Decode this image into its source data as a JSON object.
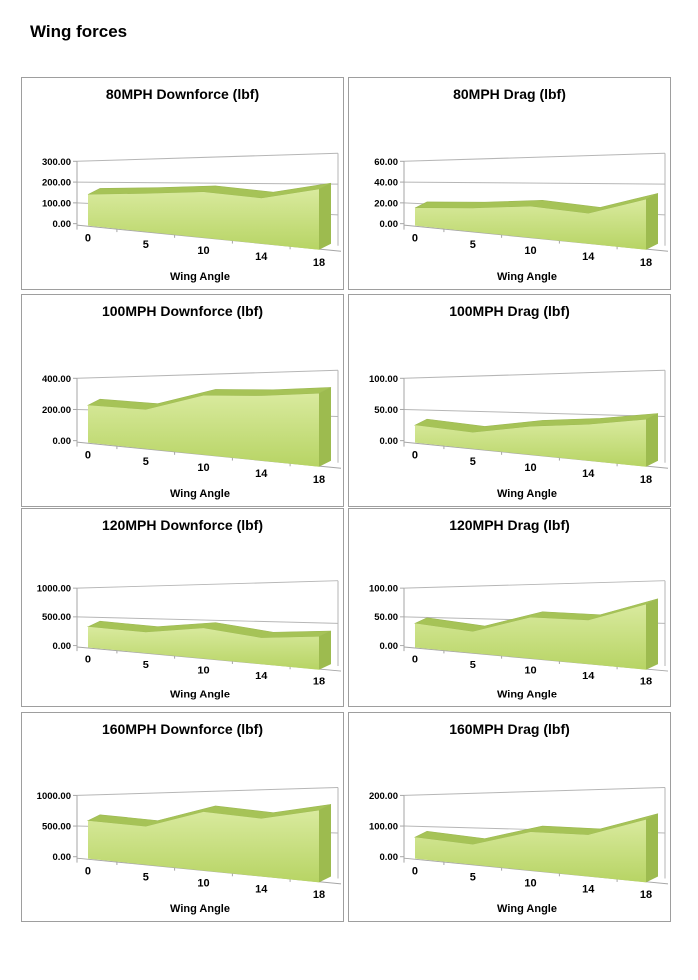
{
  "page": {
    "title": "Wing forces"
  },
  "colors": {
    "area_top": "#d9ea9e",
    "area_bottom": "#b7d464",
    "ribbon": "#a6c357",
    "ribbon_edge": "#9cb852",
    "side_face": "#9dbb4f",
    "grid": "#b6b6b6",
    "axis": "#a6a6a6",
    "box_border": "#9e9e9e"
  },
  "chart_data": [
    {
      "type": "area",
      "title": "80MPH Downforce (lbf)",
      "xlabel": "Wing Angle",
      "categories": [
        "0",
        "5",
        "10",
        "14",
        "18"
      ],
      "values": [
        150,
        162,
        175,
        158,
        192
      ],
      "yticks": [
        "0.00",
        "100.00",
        "200.00",
        "300.00"
      ],
      "ylim": [
        0,
        300
      ],
      "grid": true,
      "legend": "none"
    },
    {
      "type": "area",
      "title": "80MPH Drag (lbf)",
      "xlabel": "Wing Angle",
      "categories": [
        "0",
        "5",
        "10",
        "14",
        "18"
      ],
      "values": [
        17,
        20,
        24,
        21,
        32
      ],
      "yticks": [
        "0.00",
        "20.00",
        "40.00",
        "60.00"
      ],
      "ylim": [
        0,
        60
      ],
      "grid": true,
      "legend": "none"
    },
    {
      "type": "area",
      "title": "100MPH Downforce (lbf)",
      "xlabel": "Wing Angle",
      "categories": [
        "0",
        "5",
        "10",
        "14",
        "18"
      ],
      "values": [
        240,
        222,
        302,
        300,
        310
      ],
      "yticks": [
        "0.00",
        "200.00",
        "400.00"
      ],
      "ylim": [
        0,
        400
      ],
      "grid": true,
      "legend": "none"
    },
    {
      "type": "area",
      "title": "100MPH Drag (lbf)",
      "xlabel": "Wing Angle",
      "categories": [
        "0",
        "5",
        "10",
        "14",
        "18"
      ],
      "values": [
        28,
        23,
        36,
        42,
        50
      ],
      "yticks": [
        "0.00",
        "50.00",
        "100.00"
      ],
      "ylim": [
        0,
        100
      ],
      "grid": true,
      "legend": "none"
    },
    {
      "type": "area",
      "title": "120MPH Downforce (lbf)",
      "xlabel": "Wing Angle",
      "categories": [
        "0",
        "5",
        "10",
        "14",
        "18"
      ],
      "values": [
        360,
        320,
        420,
        330,
        380
      ],
      "yticks": [
        "0.00",
        "500.00",
        "1000.00"
      ],
      "ylim": [
        0,
        1000
      ],
      "grid": true,
      "legend": "none"
    },
    {
      "type": "area",
      "title": "120MPH Drag (lbf)",
      "xlabel": "Wing Angle",
      "categories": [
        "0",
        "5",
        "10",
        "14",
        "18"
      ],
      "values": [
        42,
        33,
        57,
        55,
        75
      ],
      "yticks": [
        "0.00",
        "50.00",
        "100.00"
      ],
      "ylim": [
        0,
        100
      ],
      "grid": true,
      "legend": "none"
    },
    {
      "type": "area",
      "title": "160MPH Downforce (lbf)",
      "xlabel": "Wing Angle",
      "categories": [
        "0",
        "5",
        "10",
        "14",
        "18"
      ],
      "values": [
        620,
        550,
        760,
        680,
        775
      ],
      "yticks": [
        "0.00",
        "500.00",
        "1000.00"
      ],
      "ylim": [
        0,
        1000
      ],
      "grid": true,
      "legend": "none"
    },
    {
      "type": "area",
      "title": "160MPH Drag (lbf)",
      "xlabel": "Wing Angle",
      "categories": [
        "0",
        "5",
        "10",
        "14",
        "18"
      ],
      "values": [
        70,
        58,
        100,
        98,
        135
      ],
      "yticks": [
        "0.00",
        "100.00",
        "200.00"
      ],
      "ylim": [
        0,
        200
      ],
      "grid": true,
      "legend": "none"
    }
  ]
}
